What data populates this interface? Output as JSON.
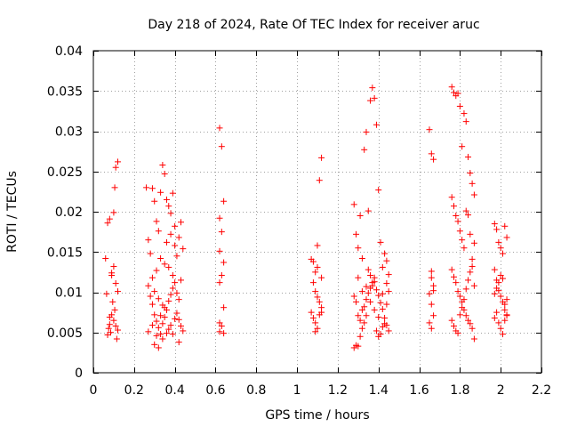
{
  "chart_data": {
    "type": "scatter",
    "title": "Day 218 of 2024, Rate Of TEC Index for receiver aruc",
    "xlabel": "GPS time / hours",
    "ylabel": "ROTI / TECUs",
    "xlim": [
      0,
      2.2
    ],
    "ylim": [
      0,
      0.04
    ],
    "xticks": [
      "0",
      "0.2",
      "0.4",
      "0.6",
      "0.8",
      "1",
      "1.2",
      "1.4",
      "1.6",
      "1.8",
      "2",
      "2.2"
    ],
    "yticks": [
      "0",
      "0.005",
      "0.01",
      "0.015",
      "0.02",
      "0.025",
      "0.03",
      "0.035",
      "0.04"
    ],
    "grid": true,
    "marker": "+",
    "color": "#ff0000",
    "series": [
      {
        "name": "ROTI",
        "points": [
          [
            0.06,
            0.0142
          ],
          [
            0.065,
            0.0098
          ],
          [
            0.07,
            0.0186
          ],
          [
            0.075,
            0.0055
          ],
          [
            0.08,
            0.006
          ],
          [
            0.085,
            0.005
          ],
          [
            0.09,
            0.0124
          ],
          [
            0.095,
            0.0088
          ],
          [
            0.1,
            0.0199
          ],
          [
            0.105,
            0.023
          ],
          [
            0.11,
            0.0255
          ],
          [
            0.12,
            0.0262
          ],
          [
            0.07,
            0.0047
          ],
          [
            0.08,
            0.0069
          ],
          [
            0.09,
            0.0072
          ],
          [
            0.1,
            0.0065
          ],
          [
            0.11,
            0.0058
          ],
          [
            0.115,
            0.0042
          ],
          [
            0.12,
            0.0101
          ],
          [
            0.1,
            0.0132
          ],
          [
            0.11,
            0.0111
          ],
          [
            0.08,
            0.0191
          ],
          [
            0.09,
            0.0121
          ],
          [
            0.105,
            0.0078
          ],
          [
            0.12,
            0.0053
          ],
          [
            0.26,
            0.023
          ],
          [
            0.27,
            0.0165
          ],
          [
            0.28,
            0.0148
          ],
          [
            0.29,
            0.0229
          ],
          [
            0.3,
            0.0213
          ],
          [
            0.31,
            0.0188
          ],
          [
            0.32,
            0.0176
          ],
          [
            0.33,
            0.0224
          ],
          [
            0.34,
            0.0258
          ],
          [
            0.35,
            0.0247
          ],
          [
            0.36,
            0.0215
          ],
          [
            0.37,
            0.0207
          ],
          [
            0.38,
            0.0198
          ],
          [
            0.39,
            0.0223
          ],
          [
            0.4,
            0.0158
          ],
          [
            0.41,
            0.0145
          ],
          [
            0.42,
            0.0168
          ],
          [
            0.43,
            0.0187
          ],
          [
            0.44,
            0.0154
          ],
          [
            0.27,
            0.0108
          ],
          [
            0.28,
            0.0095
          ],
          [
            0.29,
            0.0085
          ],
          [
            0.3,
            0.0072
          ],
          [
            0.31,
            0.0064
          ],
          [
            0.32,
            0.0056
          ],
          [
            0.33,
            0.0048
          ],
          [
            0.34,
            0.0061
          ],
          [
            0.35,
            0.0069
          ],
          [
            0.36,
            0.0078
          ],
          [
            0.37,
            0.0089
          ],
          [
            0.38,
            0.0097
          ],
          [
            0.39,
            0.0105
          ],
          [
            0.4,
            0.0112
          ],
          [
            0.41,
            0.0074
          ],
          [
            0.42,
            0.0066
          ],
          [
            0.43,
            0.0058
          ],
          [
            0.44,
            0.0052
          ],
          [
            0.3,
            0.0035
          ],
          [
            0.32,
            0.0031
          ],
          [
            0.34,
            0.0042
          ],
          [
            0.36,
            0.0049
          ],
          [
            0.38,
            0.0059
          ],
          [
            0.4,
            0.0067
          ],
          [
            0.42,
            0.0038
          ],
          [
            0.35,
            0.0135
          ],
          [
            0.33,
            0.0142
          ],
          [
            0.31,
            0.0127
          ],
          [
            0.29,
            0.0118
          ],
          [
            0.37,
            0.0131
          ],
          [
            0.39,
            0.0121
          ],
          [
            0.41,
            0.0099
          ],
          [
            0.43,
            0.0115
          ],
          [
            0.3,
            0.0101
          ],
          [
            0.32,
            0.0092
          ],
          [
            0.34,
            0.0084
          ],
          [
            0.36,
            0.0162
          ],
          [
            0.38,
            0.0172
          ],
          [
            0.4,
            0.0182
          ],
          [
            0.27,
            0.0051
          ],
          [
            0.29,
            0.0059
          ],
          [
            0.31,
            0.0046
          ],
          [
            0.33,
            0.0071
          ],
          [
            0.35,
            0.0081
          ],
          [
            0.37,
            0.0054
          ],
          [
            0.39,
            0.0048
          ],
          [
            0.42,
            0.0091
          ],
          [
            0.62,
            0.0304
          ],
          [
            0.63,
            0.0281
          ],
          [
            0.64,
            0.0213
          ],
          [
            0.62,
            0.0192
          ],
          [
            0.63,
            0.0175
          ],
          [
            0.62,
            0.0151
          ],
          [
            0.64,
            0.0137
          ],
          [
            0.63,
            0.0121
          ],
          [
            0.62,
            0.0112
          ],
          [
            0.64,
            0.0081
          ],
          [
            0.62,
            0.0062
          ],
          [
            0.63,
            0.0058
          ],
          [
            0.64,
            0.0049
          ],
          [
            0.62,
            0.0051
          ],
          [
            1.07,
            0.0141
          ],
          [
            1.08,
            0.0138
          ],
          [
            1.09,
            0.0125
          ],
          [
            1.1,
            0.0158
          ],
          [
            1.11,
            0.0239
          ],
          [
            1.12,
            0.0267
          ],
          [
            1.08,
            0.0112
          ],
          [
            1.09,
            0.0101
          ],
          [
            1.1,
            0.0094
          ],
          [
            1.11,
            0.0088
          ],
          [
            1.12,
            0.0075
          ],
          [
            1.08,
            0.0068
          ],
          [
            1.09,
            0.0062
          ],
          [
            1.1,
            0.0055
          ],
          [
            1.11,
            0.0072
          ],
          [
            1.12,
            0.0081
          ],
          [
            1.07,
            0.0075
          ],
          [
            1.09,
            0.0051
          ],
          [
            1.1,
            0.0131
          ],
          [
            1.12,
            0.0118
          ],
          [
            1.28,
            0.0209
          ],
          [
            1.29,
            0.0172
          ],
          [
            1.3,
            0.0155
          ],
          [
            1.31,
            0.0195
          ],
          [
            1.32,
            0.0142
          ],
          [
            1.33,
            0.0277
          ],
          [
            1.34,
            0.0299
          ],
          [
            1.35,
            0.0201
          ],
          [
            1.36,
            0.0338
          ],
          [
            1.37,
            0.0354
          ],
          [
            1.38,
            0.0341
          ],
          [
            1.39,
            0.0308
          ],
          [
            1.4,
            0.0227
          ],
          [
            1.41,
            0.0162
          ],
          [
            1.42,
            0.0131
          ],
          [
            1.43,
            0.0148
          ],
          [
            1.44,
            0.0139
          ],
          [
            1.45,
            0.0122
          ],
          [
            1.28,
            0.0095
          ],
          [
            1.29,
            0.0088
          ],
          [
            1.3,
            0.0071
          ],
          [
            1.31,
            0.0065
          ],
          [
            1.32,
            0.0078
          ],
          [
            1.33,
            0.0082
          ],
          [
            1.34,
            0.0091
          ],
          [
            1.35,
            0.0099
          ],
          [
            1.36,
            0.0105
          ],
          [
            1.37,
            0.0112
          ],
          [
            1.38,
            0.0118
          ],
          [
            1.39,
            0.0103
          ],
          [
            1.4,
            0.0096
          ],
          [
            1.41,
            0.0087
          ],
          [
            1.42,
            0.0079
          ],
          [
            1.43,
            0.0068
          ],
          [
            1.44,
            0.0059
          ],
          [
            1.45,
            0.0052
          ],
          [
            1.28,
            0.0031
          ],
          [
            1.29,
            0.0034
          ],
          [
            1.3,
            0.0033
          ],
          [
            1.31,
            0.0045
          ],
          [
            1.32,
            0.0055
          ],
          [
            1.33,
            0.0062
          ],
          [
            1.34,
            0.0071
          ],
          [
            1.35,
            0.0128
          ],
          [
            1.36,
            0.0121
          ],
          [
            1.37,
            0.0108
          ],
          [
            1.38,
            0.0113
          ],
          [
            1.39,
            0.0052
          ],
          [
            1.4,
            0.0045
          ],
          [
            1.41,
            0.0048
          ],
          [
            1.42,
            0.0057
          ],
          [
            1.43,
            0.0061
          ],
          [
            1.44,
            0.0111
          ],
          [
            1.45,
            0.0101
          ],
          [
            1.3,
            0.0118
          ],
          [
            1.32,
            0.0101
          ],
          [
            1.34,
            0.0107
          ],
          [
            1.36,
            0.0088
          ],
          [
            1.38,
            0.0078
          ],
          [
            1.4,
            0.0069
          ],
          [
            1.42,
            0.0098
          ],
          [
            1.44,
            0.0085
          ],
          [
            1.65,
            0.0302
          ],
          [
            1.66,
            0.0272
          ],
          [
            1.67,
            0.0265
          ],
          [
            1.66,
            0.0126
          ],
          [
            1.67,
            0.0108
          ],
          [
            1.65,
            0.0098
          ],
          [
            1.66,
            0.0085
          ],
          [
            1.67,
            0.0071
          ],
          [
            1.65,
            0.0062
          ],
          [
            1.66,
            0.0055
          ],
          [
            1.67,
            0.0102
          ],
          [
            1.66,
            0.0118
          ],
          [
            1.76,
            0.0355
          ],
          [
            1.77,
            0.0348
          ],
          [
            1.78,
            0.0344
          ],
          [
            1.79,
            0.0347
          ],
          [
            1.8,
            0.0331
          ],
          [
            1.81,
            0.0281
          ],
          [
            1.82,
            0.0322
          ],
          [
            1.83,
            0.0312
          ],
          [
            1.84,
            0.0268
          ],
          [
            1.85,
            0.0248
          ],
          [
            1.86,
            0.0235
          ],
          [
            1.87,
            0.0221
          ],
          [
            1.76,
            0.0218
          ],
          [
            1.77,
            0.0207
          ],
          [
            1.78,
            0.0195
          ],
          [
            1.79,
            0.0188
          ],
          [
            1.8,
            0.0176
          ],
          [
            1.81,
            0.0165
          ],
          [
            1.82,
            0.0155
          ],
          [
            1.83,
            0.0201
          ],
          [
            1.84,
            0.0196
          ],
          [
            1.85,
            0.0172
          ],
          [
            1.86,
            0.0141
          ],
          [
            1.87,
            0.0161
          ],
          [
            1.76,
            0.0128
          ],
          [
            1.77,
            0.0119
          ],
          [
            1.78,
            0.0112
          ],
          [
            1.79,
            0.0101
          ],
          [
            1.8,
            0.0095
          ],
          [
            1.81,
            0.0088
          ],
          [
            1.82,
            0.0078
          ],
          [
            1.83,
            0.0071
          ],
          [
            1.84,
            0.0065
          ],
          [
            1.85,
            0.0061
          ],
          [
            1.86,
            0.0055
          ],
          [
            1.87,
            0.0042
          ],
          [
            1.76,
            0.0065
          ],
          [
            1.77,
            0.0058
          ],
          [
            1.78,
            0.0052
          ],
          [
            1.79,
            0.0049
          ],
          [
            1.8,
            0.0072
          ],
          [
            1.81,
            0.0081
          ],
          [
            1.82,
            0.0091
          ],
          [
            1.83,
            0.0104
          ],
          [
            1.84,
            0.0115
          ],
          [
            1.85,
            0.0125
          ],
          [
            1.86,
            0.0132
          ],
          [
            1.87,
            0.0108
          ],
          [
            1.97,
            0.0185
          ],
          [
            1.98,
            0.0178
          ],
          [
            1.99,
            0.0162
          ],
          [
            2.0,
            0.0155
          ],
          [
            2.01,
            0.0148
          ],
          [
            2.02,
            0.0182
          ],
          [
            2.03,
            0.0168
          ],
          [
            1.97,
            0.0128
          ],
          [
            1.98,
            0.0115
          ],
          [
            1.99,
            0.0102
          ],
          [
            2.0,
            0.0095
          ],
          [
            2.01,
            0.0088
          ],
          [
            2.02,
            0.0078
          ],
          [
            2.03,
            0.0071
          ],
          [
            1.97,
            0.0068
          ],
          [
            1.98,
            0.0075
          ],
          [
            1.99,
            0.0062
          ],
          [
            2.0,
            0.0055
          ],
          [
            2.01,
            0.0048
          ],
          [
            2.02,
            0.0065
          ],
          [
            2.03,
            0.0072
          ],
          [
            1.97,
            0.0098
          ],
          [
            1.98,
            0.0105
          ],
          [
            1.99,
            0.0112
          ],
          [
            2.0,
            0.0121
          ],
          [
            2.01,
            0.0117
          ],
          [
            2.02,
            0.0085
          ],
          [
            2.03,
            0.0091
          ]
        ]
      }
    ]
  }
}
